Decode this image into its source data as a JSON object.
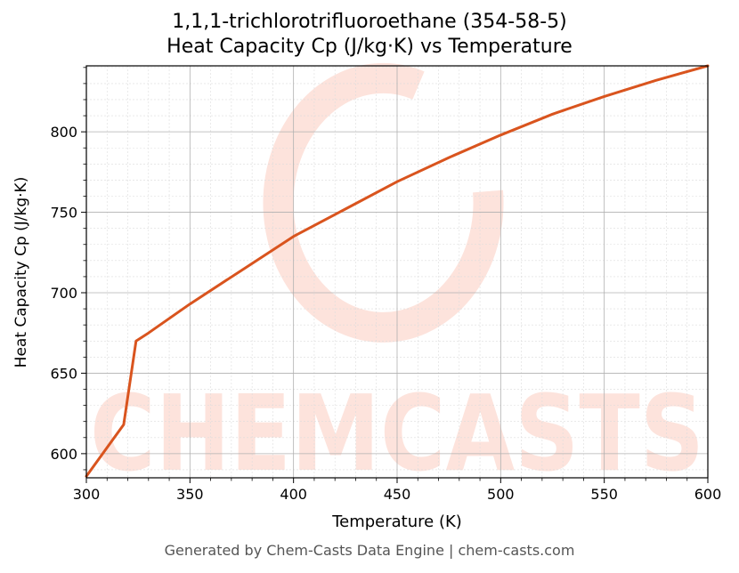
{
  "chart_data": {
    "type": "line",
    "title": "1,1,1-trichlorotrifluoroethane (354-58-5)",
    "subtitle": "Heat Capacity Cp (J/kg·K) vs Temperature",
    "xlabel": "Temperature (K)",
    "ylabel": "Heat Capacity Cp (J/kg·K)",
    "xlim": [
      300,
      600
    ],
    "ylim": [
      585,
      841
    ],
    "x_ticks": [
      300,
      350,
      400,
      450,
      500,
      550,
      600
    ],
    "y_ticks": [
      600,
      650,
      700,
      750,
      800
    ],
    "grid": true,
    "line_color": "#d9541e",
    "series": [
      {
        "x": [
          300,
          318,
          324,
          330,
          350,
          375,
          400,
          425,
          450,
          475,
          500,
          525,
          550,
          575,
          600
        ],
        "values": [
          586,
          618,
          670,
          675,
          693,
          714,
          735,
          752,
          769,
          784,
          798,
          811,
          822,
          832,
          841
        ]
      }
    ]
  },
  "watermark": {
    "text": "CHEMCASTS",
    "color": "#fde3dc"
  },
  "footer": "Generated by Chem-Casts Data Engine | chem-casts.com"
}
